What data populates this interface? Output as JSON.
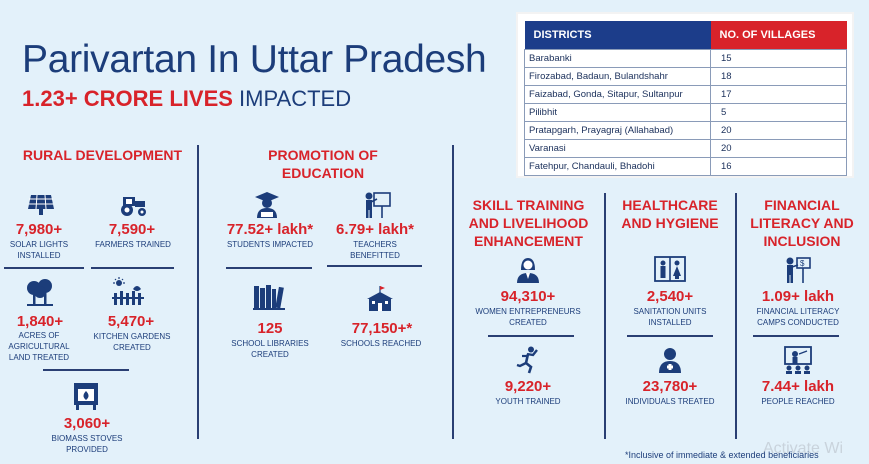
{
  "header": {
    "title": "Parivartan In Uttar Pradesh",
    "subtitle_red": "1.23+ CRORE LIVES",
    "subtitle_blue": "IMPACTED"
  },
  "table": {
    "headers": [
      "DISTRICTS",
      "NO. OF VILLAGES"
    ],
    "rows": [
      [
        "Barabanki",
        "15"
      ],
      [
        "Firozabad, Badaun, Bulandshahr",
        "18"
      ],
      [
        "Faizabad, Gonda, Sitapur, Sultanpur",
        "17"
      ],
      [
        "Pilibhit",
        "5"
      ],
      [
        "Pratapgarh, Prayagraj (Allahabad)",
        "20"
      ],
      [
        "Varanasi",
        "20"
      ],
      [
        "Fatehpur, Chandauli, Bhadohi",
        "16"
      ]
    ]
  },
  "rural": {
    "heading": "RURAL DEVELOPMENT",
    "stats": [
      {
        "value": "7,980+",
        "label": "SOLAR LIGHTS INSTALLED",
        "icon": "solar-panel-icon"
      },
      {
        "value": "7,590+",
        "label": "FARMERS TRAINED",
        "icon": "tractor-icon"
      },
      {
        "value": "1,840+",
        "label": "ACRES OF AGRICULTURAL LAND TREATED",
        "icon": "trees-icon"
      },
      {
        "value": "5,470+",
        "label": "KITCHEN GARDENS CREATED",
        "icon": "garden-icon"
      },
      {
        "value": "3,060+",
        "label": "BIOMASS STOVES PROVIDED",
        "icon": "stove-icon"
      }
    ]
  },
  "education": {
    "heading": "PROMOTION OF EDUCATION",
    "stats": [
      {
        "value": "77.52+ lakh*",
        "label": "STUDENTS IMPACTED",
        "icon": "student-icon"
      },
      {
        "value": "6.79+ lakh*",
        "label": "TEACHERS BENEFITTED",
        "icon": "teacher-icon"
      },
      {
        "value": "125",
        "label": "SCHOOL LIBRARIES CREATED",
        "icon": "books-icon"
      },
      {
        "value": "77,150+*",
        "label": "SCHOOLS REACHED",
        "icon": "school-icon"
      }
    ]
  },
  "skill": {
    "heading": "SKILL TRAINING AND LIVELIHOOD ENHANCEMENT",
    "stats": [
      {
        "value": "94,310+",
        "label": "WOMEN ENTREPRENEURS CREATED",
        "icon": "woman-icon"
      },
      {
        "value": "9,220+",
        "label": "YOUTH TRAINED",
        "icon": "runner-icon"
      }
    ]
  },
  "health": {
    "heading": "HEALTHCARE AND HYGIENE",
    "stats": [
      {
        "value": "2,540+",
        "label": "SANITATION UNITS INSTALLED",
        "icon": "toilet-icon"
      },
      {
        "value": "23,780+",
        "label": "INDIVIDUALS TREATED",
        "icon": "patient-icon"
      }
    ]
  },
  "finance": {
    "heading": "FINANCIAL LITERACY AND INCLUSION",
    "stats": [
      {
        "value": "1.09+ lakh",
        "label": "FINANCIAL LITERACY CAMPS CONDUCTED",
        "icon": "presenter-icon"
      },
      {
        "value": "7.44+ lakh",
        "label": "PEOPLE REACHED",
        "icon": "presentation-board-icon"
      }
    ]
  },
  "footnote": "*Inclusive of immediate & extended beneficiaries",
  "watermark": "Activate Wi",
  "colors": {
    "accent_red": "#d8232a",
    "navy": "#1c3d7a",
    "background": "#e3f1fa"
  }
}
